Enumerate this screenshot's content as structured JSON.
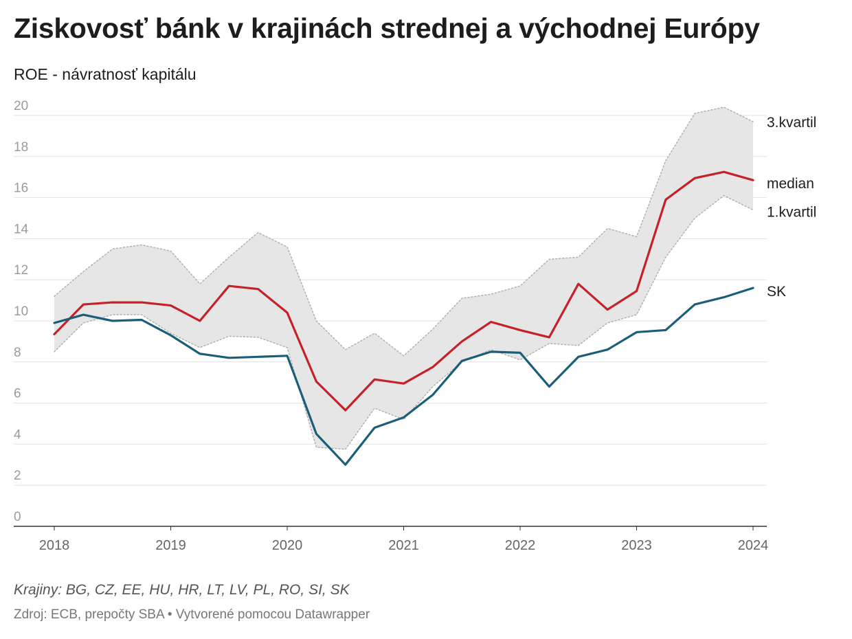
{
  "title": "Ziskovosť bánk v krajinách strednej a východnej Európy",
  "subtitle": "ROE - návratnosť kapitálu",
  "notes": "Krajiny: BG, CZ, EE, HU, HR, LT, LV, PL, RO, SI, SK",
  "source": "Zdroj: ECB, prepočty SBA • Vytvorené pomocou Datawrapper",
  "chart_data": {
    "type": "line",
    "title": "Ziskovosť bánk v krajinách strednej a východnej Európy",
    "subtitle": "ROE - návratnosť kapitálu",
    "xlabel": "",
    "ylabel": "",
    "xlim": [
      2018,
      2024
    ],
    "ylim": [
      0,
      20
    ],
    "yticks": [
      "0",
      "2",
      "4",
      "6",
      "8",
      "10",
      "12",
      "14",
      "16",
      "18",
      "20"
    ],
    "xticks": [
      "2018",
      "2019",
      "2020",
      "2021",
      "2022",
      "2023",
      "2024"
    ],
    "grid": true,
    "x": [
      2018.0,
      2018.25,
      2018.5,
      2018.75,
      2019.0,
      2019.25,
      2019.5,
      2019.75,
      2020.0,
      2020.25,
      2020.5,
      2020.75,
      2021.0,
      2021.25,
      2021.5,
      2021.75,
      2022.0,
      2022.25,
      2022.5,
      2022.75,
      2023.0,
      2023.25,
      2023.5,
      2023.75,
      2024.0
    ],
    "series": [
      {
        "name": "3.kvartil",
        "label": "3.kvartil",
        "color": "#b0b0b0",
        "style": "dotted",
        "values": [
          11.2,
          12.4,
          13.5,
          13.7,
          13.4,
          11.8,
          13.1,
          14.3,
          13.6,
          10.0,
          8.6,
          9.4,
          8.3,
          9.6,
          11.1,
          11.3,
          11.7,
          13.0,
          13.1,
          14.5,
          14.1,
          17.8,
          20.1,
          20.4,
          19.7
        ]
      },
      {
        "name": "median",
        "label": "median",
        "color": "#c62128",
        "style": "solid",
        "values": [
          9.35,
          10.8,
          10.9,
          10.9,
          10.75,
          10.0,
          11.7,
          11.55,
          10.4,
          7.05,
          5.65,
          7.15,
          6.95,
          7.75,
          9.0,
          9.95,
          9.55,
          9.2,
          11.8,
          10.55,
          11.45,
          15.9,
          16.95,
          17.25,
          16.85
        ]
      },
      {
        "name": "1.kvartil",
        "label": "1.kvartil",
        "color": "#b0b0b0",
        "style": "dotted",
        "values": [
          8.5,
          9.9,
          10.3,
          10.3,
          9.4,
          8.7,
          9.25,
          9.2,
          8.7,
          3.85,
          3.75,
          5.75,
          5.2,
          6.8,
          8.0,
          8.6,
          8.1,
          8.9,
          8.8,
          9.9,
          10.3,
          13.1,
          15.0,
          16.1,
          15.4
        ]
      },
      {
        "name": "SK",
        "label": "SK",
        "color": "#1b5e7a",
        "style": "solid",
        "values": [
          9.9,
          10.3,
          10.0,
          10.05,
          9.3,
          8.4,
          8.2,
          8.25,
          8.3,
          4.5,
          3.0,
          4.8,
          5.3,
          6.4,
          8.05,
          8.5,
          8.45,
          6.8,
          8.25,
          8.6,
          9.45,
          9.55,
          10.8,
          11.15,
          11.6
        ]
      }
    ],
    "band": {
      "upper": "3.kvartil",
      "lower": "1.kvartil",
      "fill": "#e6e6e6"
    },
    "legend": "direct labels at right"
  }
}
